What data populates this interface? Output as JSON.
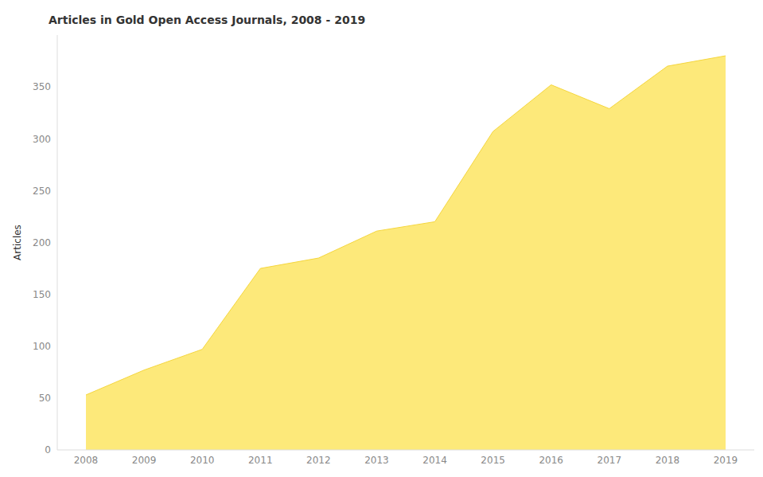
{
  "chart_data": {
    "type": "area",
    "title": "Articles in Gold Open Access Journals, 2008 - 2019",
    "y_label": "Articles",
    "categories": [
      "2008",
      "2009",
      "2010",
      "2011",
      "2012",
      "2013",
      "2014",
      "2015",
      "2016",
      "2017",
      "2018",
      "2019"
    ],
    "values": [
      53,
      77,
      97,
      175,
      185,
      211,
      220,
      307,
      352,
      329,
      370,
      380
    ],
    "color": "#fde97a",
    "ylim": [
      0,
      400
    ],
    "yticks": [
      0,
      50,
      100,
      150,
      200,
      250,
      300,
      350
    ],
    "grid": false
  }
}
